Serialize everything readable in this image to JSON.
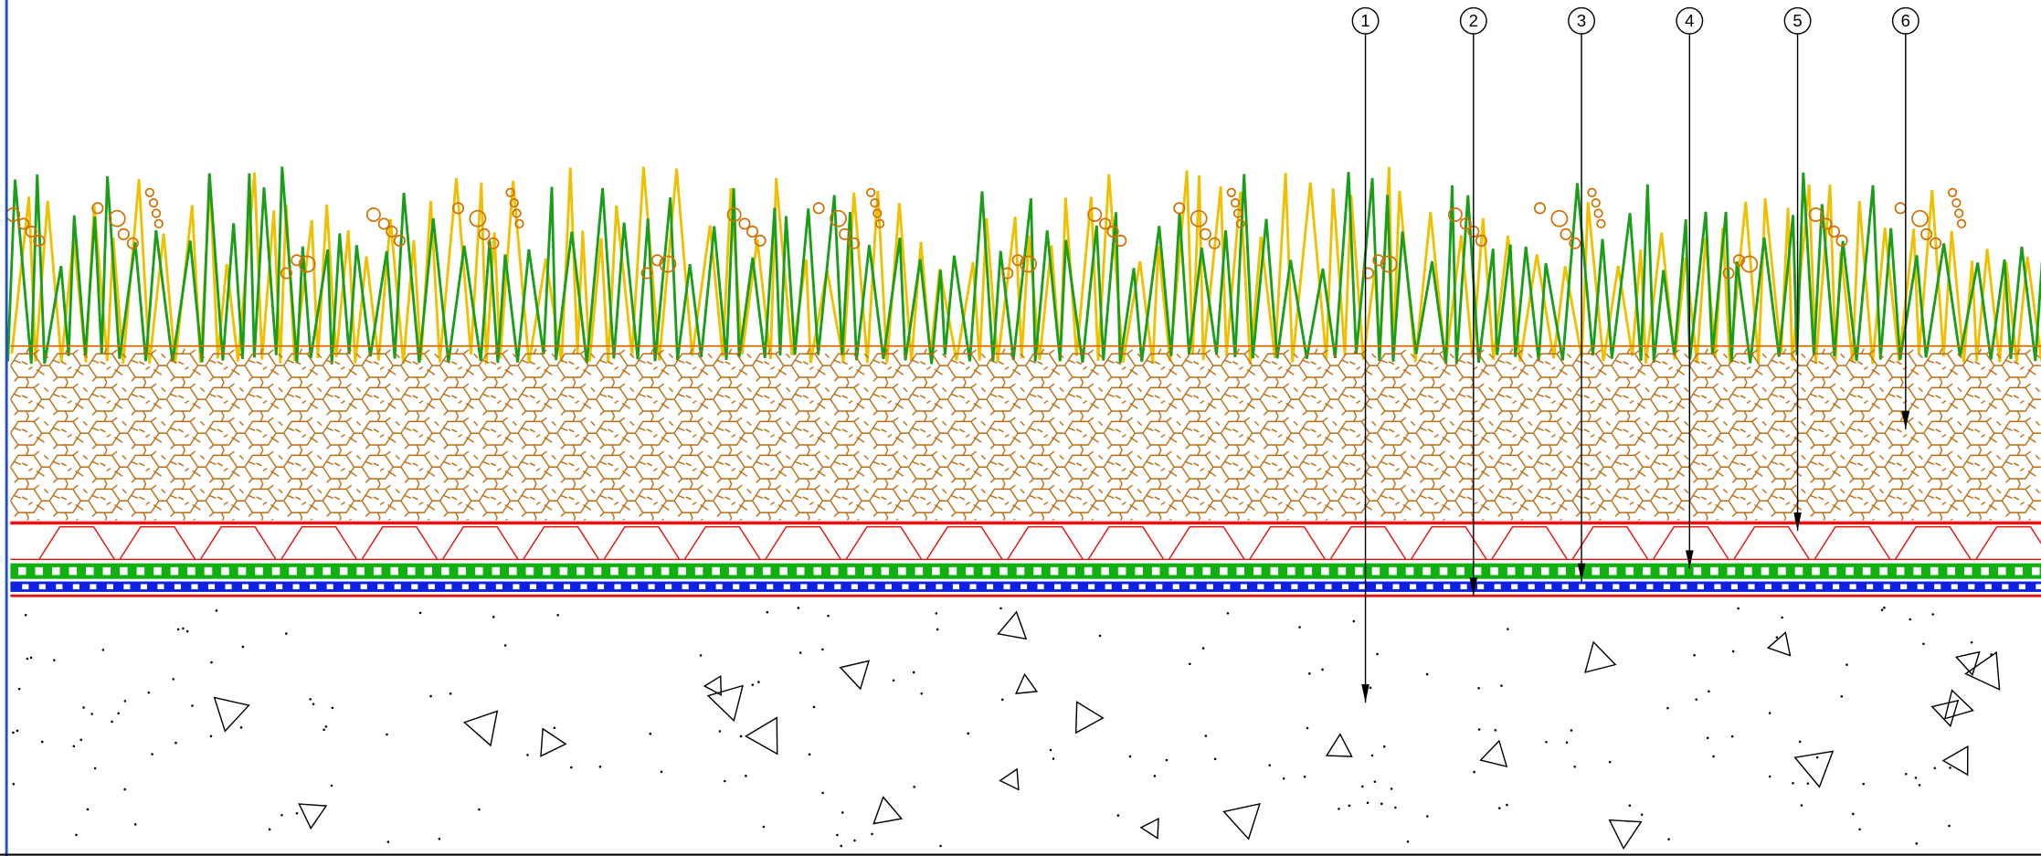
{
  "callouts": [
    {
      "label": "1"
    },
    {
      "label": "2"
    },
    {
      "label": "3"
    },
    {
      "label": "4"
    },
    {
      "label": "5"
    },
    {
      "label": "6"
    }
  ]
}
